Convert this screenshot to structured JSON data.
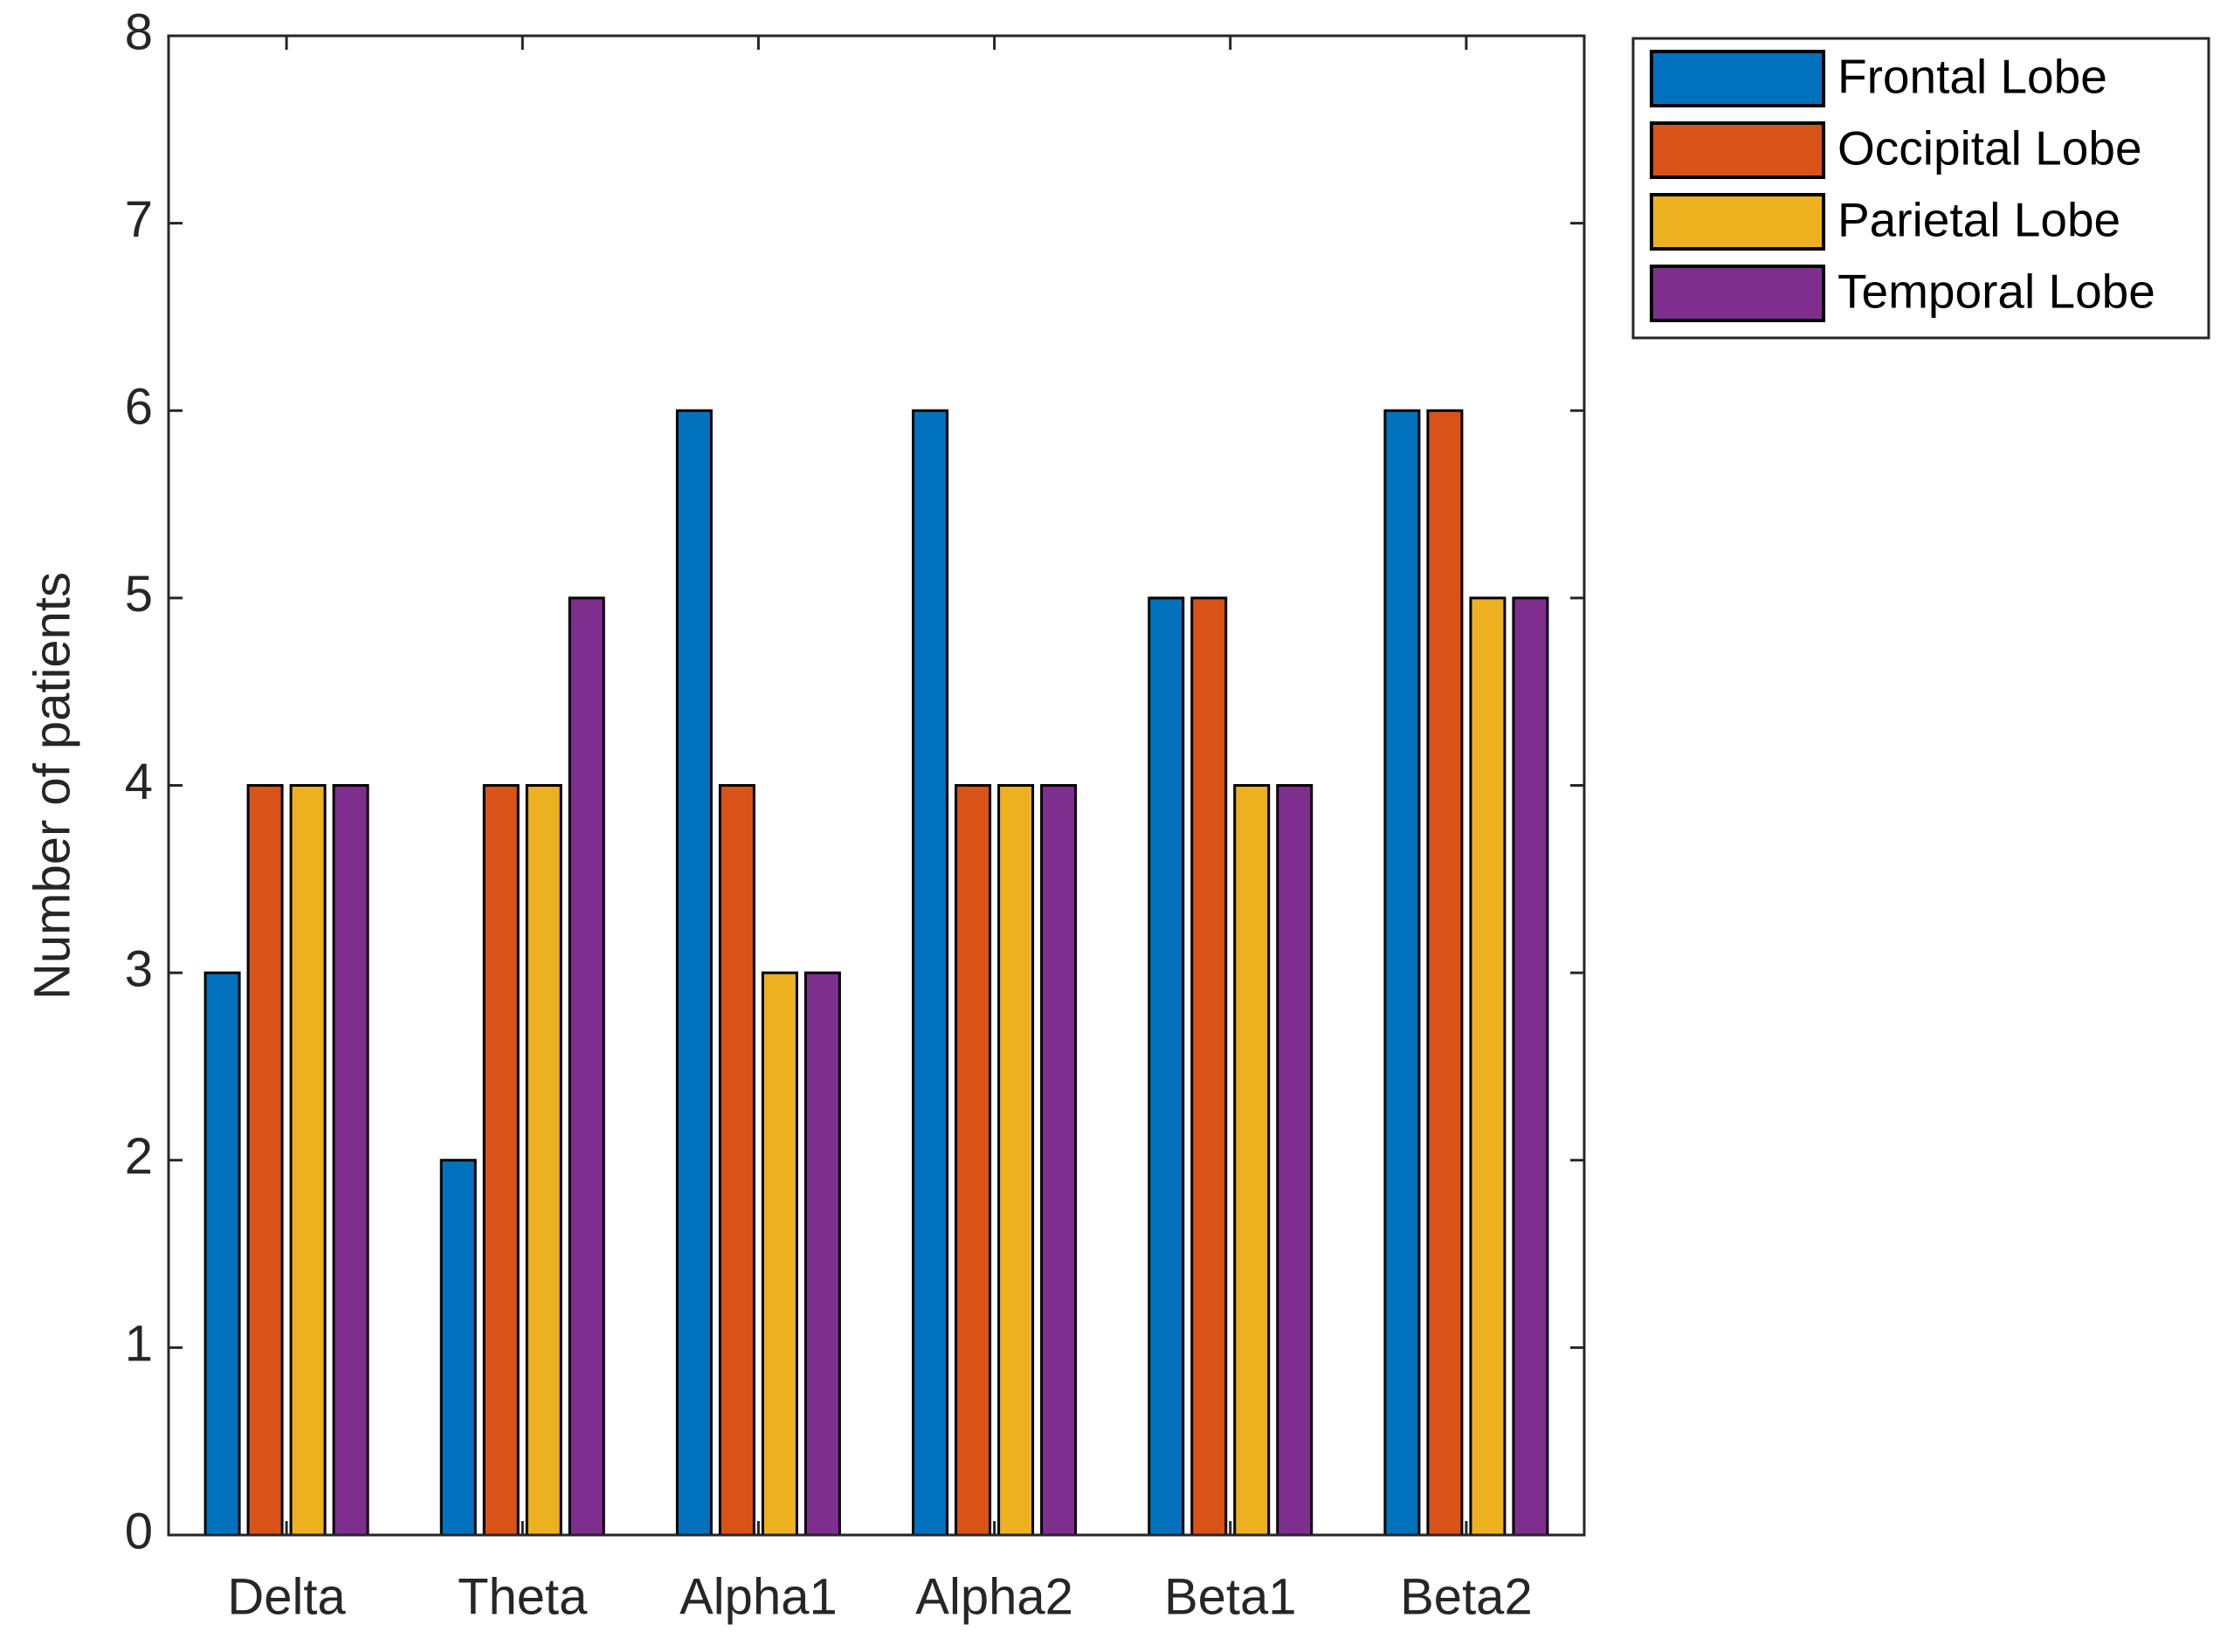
{
  "chart_data": {
    "type": "bar",
    "categories": [
      "Delta",
      "Theta",
      "Alpha1",
      "Alpha2",
      "Beta1",
      "Beta2"
    ],
    "series": [
      {
        "name": "Frontal Lobe",
        "color": "#0072bd",
        "values": [
          3,
          2,
          6,
          6,
          5,
          6
        ]
      },
      {
        "name": "Occipital Lobe",
        "color": "#d95319",
        "values": [
          4,
          4,
          4,
          4,
          5,
          6
        ]
      },
      {
        "name": "Parietal Lobe",
        "color": "#edb120",
        "values": [
          4,
          4,
          3,
          4,
          4,
          5
        ]
      },
      {
        "name": "Temporal Lobe",
        "color": "#7e2f8e",
        "values": [
          4,
          5,
          3,
          4,
          4,
          5
        ]
      }
    ],
    "y_label": "Number of patients",
    "ylim": [
      0,
      8
    ],
    "yticks": [
      0,
      1,
      2,
      3,
      4,
      5,
      6,
      7,
      8
    ],
    "legend": "outside-top-right"
  }
}
